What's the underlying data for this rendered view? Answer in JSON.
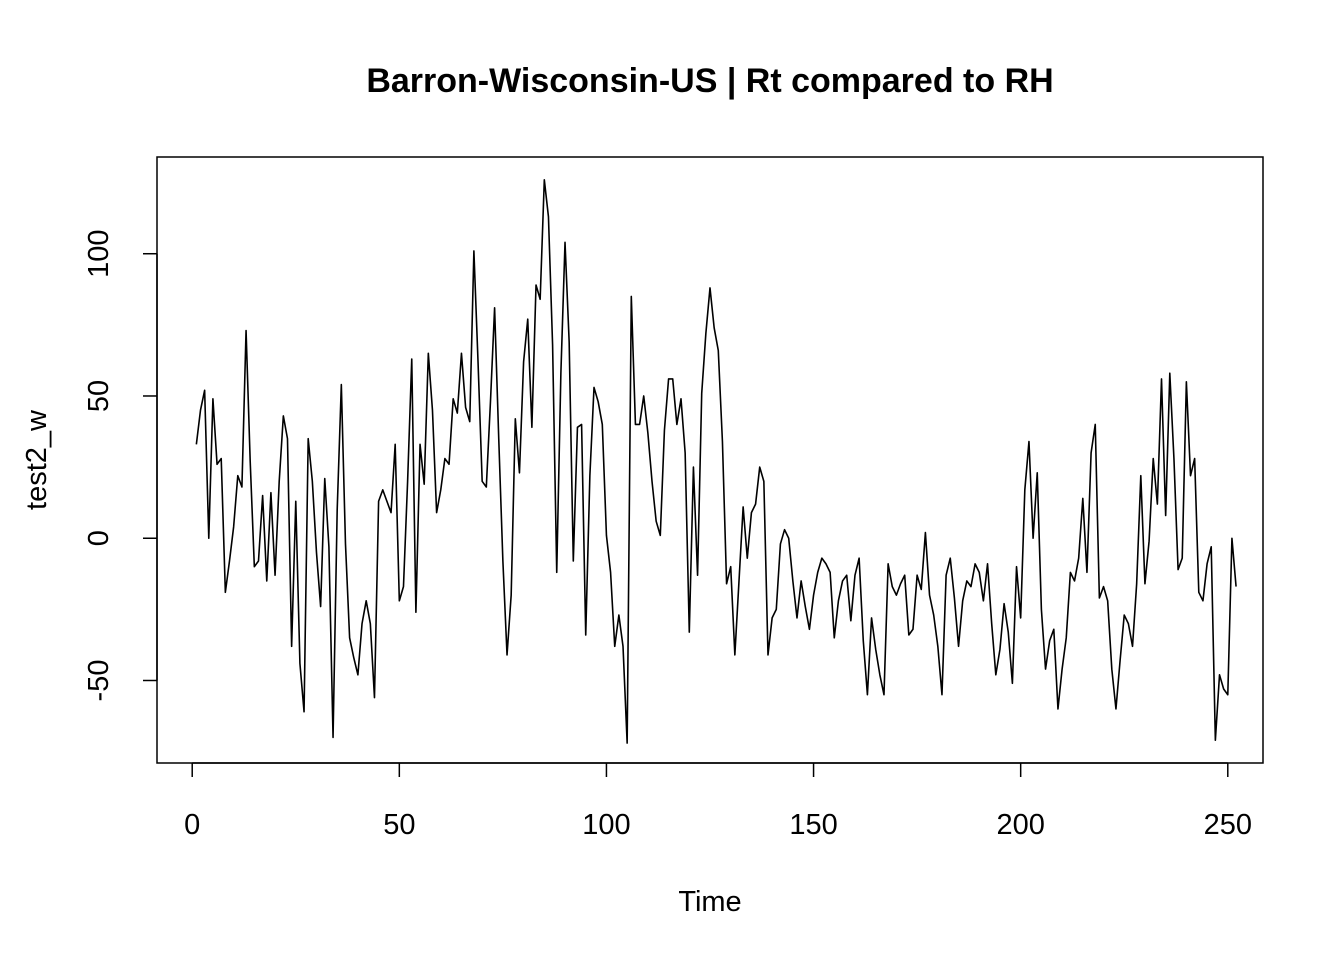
{
  "chart_data": {
    "type": "line",
    "title": "Barron-Wisconsin-US | Rt compared to RH",
    "xlabel": "Time",
    "ylabel": "test2_w",
    "xlim": [
      -8.5,
      258.5
    ],
    "ylim": [
      -79,
      134
    ],
    "x_ticks": [
      0,
      50,
      100,
      150,
      200,
      250
    ],
    "y_ticks": [
      -50,
      0,
      50,
      100
    ],
    "grid": false,
    "legend": "none",
    "line_color": "#000000",
    "series": [
      {
        "x_start": 1,
        "values": [
          33,
          45,
          52,
          0,
          49,
          26,
          28,
          -19,
          -8,
          4,
          22,
          18,
          73,
          27,
          -10,
          -8,
          15,
          -15,
          16,
          -13,
          20,
          43,
          35,
          -38,
          13,
          -44,
          -61,
          35,
          20,
          -5,
          -24,
          21,
          -3,
          -70,
          10,
          54,
          -2,
          -35,
          -42,
          -48,
          -30,
          -22,
          -30,
          -56,
          13,
          17,
          13,
          9,
          33,
          -22,
          -17,
          20,
          63,
          -26,
          33,
          19,
          65,
          45,
          9,
          17,
          28,
          26,
          49,
          44,
          65,
          46,
          41,
          101,
          62,
          20,
          18,
          48,
          81,
          35,
          -8,
          -41,
          -20,
          42,
          23,
          62,
          77,
          39,
          89,
          84,
          126,
          113,
          68,
          -12,
          58,
          104,
          69,
          -8,
          39,
          40,
          -34,
          22,
          53,
          48,
          40,
          1,
          -12,
          -38,
          -27,
          -38,
          -72,
          85,
          40,
          40,
          50,
          37,
          20,
          6,
          1,
          38,
          56,
          56,
          40,
          49,
          30,
          -33,
          25,
          -13,
          51,
          72,
          88,
          74,
          66,
          34,
          -16,
          -10,
          -41,
          -15,
          11,
          -7,
          9,
          12,
          25,
          20,
          -41,
          -28,
          -25,
          -2,
          3,
          0,
          -15,
          -28,
          -15,
          -24,
          -32,
          -20,
          -12,
          -7,
          -9,
          -12,
          -35,
          -22,
          -15,
          -13,
          -29,
          -13,
          -7,
          -36,
          -55,
          -28,
          -39,
          -48,
          -55,
          -9,
          -17,
          -20,
          -16,
          -13,
          -34,
          -32,
          -13,
          -18,
          2,
          -20,
          -27,
          -38,
          -55,
          -13,
          -7,
          -21,
          -38,
          -22,
          -15,
          -17,
          -9,
          -12,
          -22,
          -9,
          -30,
          -48,
          -39,
          -23,
          -33,
          -51,
          -10,
          -28,
          17,
          34,
          0,
          23,
          -25,
          -46,
          -36,
          -32,
          -60,
          -46,
          -35,
          -12,
          -15,
          -7,
          14,
          -12,
          30,
          40,
          -21,
          -17,
          -22,
          -46,
          -60,
          -43,
          -27,
          -30,
          -38,
          -16,
          22,
          -16,
          -1,
          28,
          12,
          56,
          8,
          58,
          28,
          -11,
          -7,
          55,
          22,
          28,
          -19,
          -22,
          -9,
          -3,
          -71,
          -48,
          -53,
          -55,
          0,
          -17
        ]
      }
    ]
  }
}
